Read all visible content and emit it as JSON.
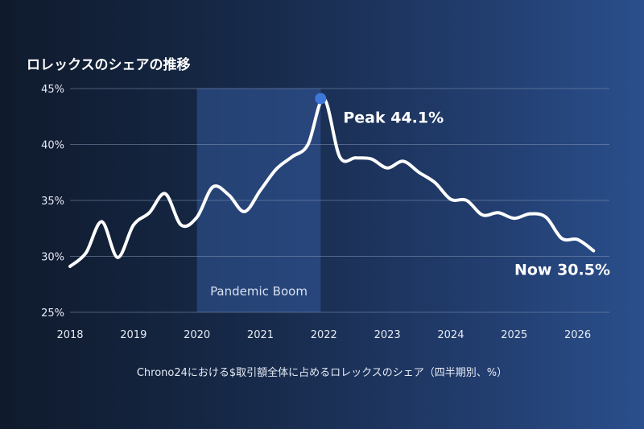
{
  "chart_data": {
    "type": "line",
    "title": "ロレックスのシェアの推移",
    "caption": "Chrono24における$取引額全体に占めるロレックスのシェア（四半期別、%）",
    "xlabel": "",
    "ylabel": "",
    "x_ticks": [
      "2018",
      "2019",
      "2020",
      "2021",
      "2022",
      "2023",
      "2024",
      "2025",
      "2026"
    ],
    "y_ticks": [
      "25%",
      "30%",
      "35%",
      "40%",
      "45%"
    ],
    "xlim": [
      2018,
      2026.5
    ],
    "ylim": [
      25,
      45
    ],
    "grid": true,
    "series": [
      {
        "x": [
          2018.0,
          2018.25,
          2018.5,
          2018.75,
          2019.0,
          2019.25,
          2019.5,
          2019.75,
          2020.0,
          2020.25,
          2020.5,
          2020.75,
          2021.0,
          2021.25,
          2021.5,
          2021.75,
          2022.0,
          2022.25,
          2022.5,
          2022.75,
          2023.0,
          2023.25,
          2023.5,
          2023.75,
          2024.0,
          2024.25,
          2024.5,
          2024.75,
          2025.0,
          2025.25,
          2025.5,
          2025.75,
          2026.0,
          2026.25
        ],
        "values": [
          29.1,
          30.3,
          33.1,
          29.9,
          32.8,
          33.9,
          35.6,
          32.8,
          33.5,
          36.2,
          35.5,
          34.0,
          35.9,
          37.8,
          38.9,
          40.0,
          44.1,
          38.9,
          38.8,
          38.7,
          37.9,
          38.5,
          37.5,
          36.6,
          35.1,
          35.0,
          33.7,
          33.9,
          33.4,
          33.8,
          33.5,
          31.6,
          31.5,
          30.5
        ]
      }
    ],
    "shaded_region": {
      "x_start": 2020.0,
      "x_end": 2021.95,
      "label": "Pandemic Boom"
    },
    "annotations": [
      {
        "x": 2021.95,
        "y": 44.1,
        "text": "Peak 44.1%",
        "marker": true
      },
      {
        "x": 2026.25,
        "y": 30.5,
        "text": "Now 30.5%",
        "marker": false
      }
    ],
    "colors": {
      "line": "#ffffff",
      "marker": "#3d78d8",
      "shade": "#3a64b0",
      "grid": "#7f91b3",
      "tick_label": "#e6ebf5"
    }
  }
}
